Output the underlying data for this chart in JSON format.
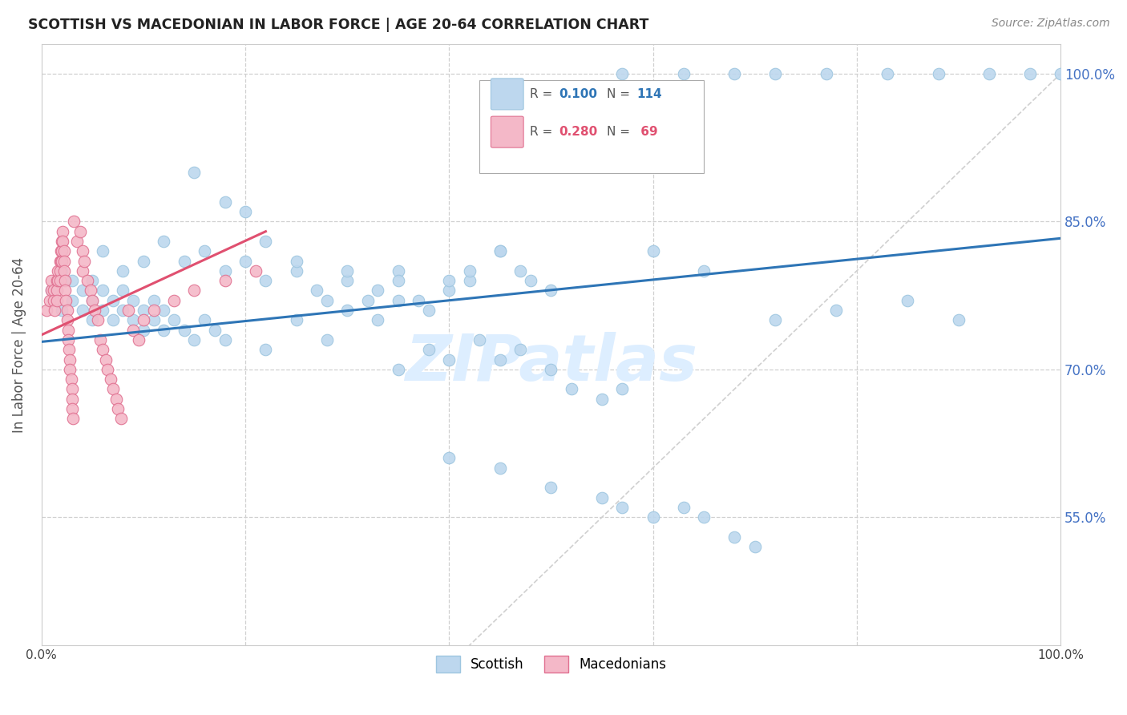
{
  "title": "SCOTTISH VS MACEDONIAN IN LABOR FORCE | AGE 20-64 CORRELATION CHART",
  "source_text": "Source: ZipAtlas.com",
  "ylabel": "In Labor Force | Age 20-64",
  "xlim": [
    0.0,
    1.0
  ],
  "ylim": [
    0.42,
    1.03
  ],
  "ytick_vals": [
    0.55,
    0.7,
    0.85,
    1.0
  ],
  "ytick_labels": [
    "55.0%",
    "70.0%",
    "85.0%",
    "100.0%"
  ],
  "scottish_color": "#bdd7ee",
  "scottish_edge": "#9ec6e0",
  "macedonian_color": "#f4b8c8",
  "macedonian_edge": "#e07090",
  "trend_scottish_color": "#2e75b6",
  "trend_macedonian_color": "#e05070",
  "diagonal_color": "#d0d0d0",
  "grid_color": "#d0d0d0",
  "watermark_color": "#ddeeff",
  "trend_s_x0": 0.0,
  "trend_s_y0": 0.728,
  "trend_s_x1": 1.0,
  "trend_s_y1": 0.833,
  "trend_m_x0": 0.0,
  "trend_m_y0": 0.735,
  "trend_m_x1": 0.22,
  "trend_m_y1": 0.84
}
